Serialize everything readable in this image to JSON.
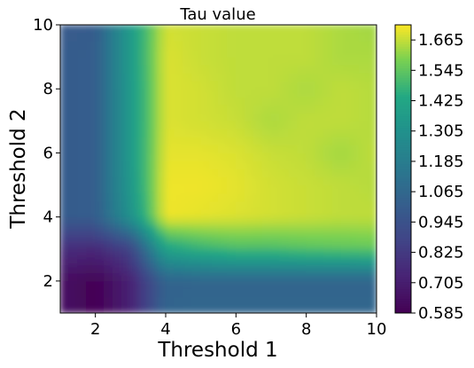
{
  "chart_data": {
    "type": "heatmap",
    "title": "Tau value",
    "xlabel": "Threshold 1",
    "ylabel": "Threshold 2",
    "xlim": [
      1,
      10
    ],
    "ylim": [
      1,
      10
    ],
    "x_ticks": [
      "2",
      "4",
      "6",
      "8",
      "10"
    ],
    "y_ticks": [
      "2",
      "4",
      "6",
      "8",
      "10"
    ],
    "x": [
      1,
      2,
      3,
      4,
      5,
      6,
      7,
      8,
      9,
      10
    ],
    "y": [
      1,
      2,
      3,
      4,
      5,
      6,
      7,
      8,
      9,
      10
    ],
    "z": [
      [
        0.66,
        0.59,
        0.73,
        1.05,
        1.06,
        1.06,
        1.06,
        1.06,
        1.06,
        1.06
      ],
      [
        0.65,
        0.59,
        0.72,
        1.04,
        1.05,
        1.05,
        1.05,
        1.05,
        1.05,
        1.05
      ],
      [
        0.78,
        0.75,
        0.86,
        1.4,
        1.47,
        1.51,
        1.51,
        1.53,
        1.54,
        1.55
      ],
      [
        1.0,
        1.01,
        1.3,
        1.71,
        1.7,
        1.69,
        1.68,
        1.67,
        1.66,
        1.66
      ],
      [
        1.0,
        1.01,
        1.34,
        1.71,
        1.71,
        1.7,
        1.68,
        1.67,
        1.66,
        1.65
      ],
      [
        1.0,
        1.01,
        1.35,
        1.7,
        1.7,
        1.69,
        1.67,
        1.66,
        1.63,
        1.66
      ],
      [
        1.0,
        1.01,
        1.35,
        1.69,
        1.68,
        1.67,
        1.64,
        1.66,
        1.66,
        1.65
      ],
      [
        1.0,
        1.01,
        1.35,
        1.69,
        1.68,
        1.66,
        1.66,
        1.64,
        1.66,
        1.65
      ],
      [
        1.0,
        1.01,
        1.36,
        1.69,
        1.67,
        1.66,
        1.66,
        1.66,
        1.64,
        1.64
      ],
      [
        0.99,
        1.0,
        1.36,
        1.68,
        1.67,
        1.66,
        1.66,
        1.66,
        1.64,
        1.63
      ]
    ],
    "colormap": "viridis",
    "colorbar": {
      "min": 0.585,
      "max": 1.725,
      "ticks": [
        "0.585",
        "0.705",
        "0.825",
        "0.945",
        "1.065",
        "1.185",
        "1.305",
        "1.425",
        "1.545",
        "1.665"
      ]
    },
    "legend": "right"
  }
}
